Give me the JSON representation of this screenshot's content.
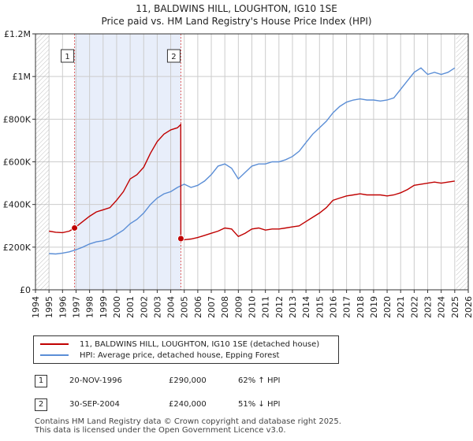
{
  "title_line1": "11, BALDWINS HILL, LOUGHTON, IG10 1SE",
  "title_line2": "Price paid vs. HM Land Registry's House Price Index (HPI)",
  "colors": {
    "property": "#c00000",
    "hpi": "#5b8ed6",
    "shade": "#e8eefa",
    "grid": "#cccccc",
    "vline": "#e06060"
  },
  "legend": {
    "property_label": "11, BALDWINS HILL, LOUGHTON, IG10 1SE (detached house)",
    "hpi_label": "HPI: Average price, detached house, Epping Forest"
  },
  "transactions": [
    {
      "num": "1",
      "date": "20-NOV-1996",
      "price": "£290,000",
      "hpi": "62% ↑ HPI"
    },
    {
      "num": "2",
      "date": "30-SEP-2004",
      "price": "£240,000",
      "hpi": "51% ↓ HPI"
    }
  ],
  "footer_line1": "Contains HM Land Registry data © Crown copyright and database right 2025.",
  "footer_line2": "This data is licensed under the Open Government Licence v3.0.",
  "chart_data": {
    "type": "line",
    "xlabel": "",
    "ylabel": "",
    "xlim": [
      1994,
      2026
    ],
    "ylim": [
      0,
      1200000
    ],
    "x_ticks": [
      "1994",
      "1995",
      "1996",
      "1997",
      "1998",
      "1999",
      "2000",
      "2001",
      "2002",
      "2003",
      "2004",
      "2005",
      "2006",
      "2007",
      "2008",
      "2009",
      "2010",
      "2011",
      "2012",
      "2013",
      "2014",
      "2015",
      "2016",
      "2017",
      "2018",
      "2019",
      "2020",
      "2021",
      "2022",
      "2023",
      "2024",
      "2025",
      "2026"
    ],
    "y_ticks": [
      {
        "value": 0,
        "label": "£0"
      },
      {
        "value": 200000,
        "label": "£200K"
      },
      {
        "value": 400000,
        "label": "£400K"
      },
      {
        "value": 600000,
        "label": "£600K"
      },
      {
        "value": 800000,
        "label": "£800K"
      },
      {
        "value": 1000000,
        "label": "£1M"
      },
      {
        "value": 1200000,
        "label": "£1.2M"
      }
    ],
    "grid": true,
    "shaded_range": [
      1996.89,
      2004.75
    ],
    "data_start": 1995.0,
    "data_end": 2025.1,
    "markers": [
      {
        "label": "1",
        "x": 1996.89,
        "y": 290000
      },
      {
        "label": "2",
        "x": 2004.75,
        "y": 240000
      }
    ],
    "series": [
      {
        "name": "11, BALDWINS HILL, LOUGHTON, IG10 1SE (detached house)",
        "x": [
          1995.0,
          1995.5,
          1996.0,
          1996.5,
          1996.89,
          1997.5,
          1998.0,
          1998.5,
          1999.0,
          1999.5,
          2000.0,
          2000.5,
          2001.0,
          2001.5,
          2002.0,
          2002.5,
          2003.0,
          2003.5,
          2004.0,
          2004.5,
          2004.74,
          2004.75,
          2005.0,
          2005.5,
          2006.0,
          2006.5,
          2007.0,
          2007.5,
          2008.0,
          2008.5,
          2009.0,
          2009.5,
          2010.0,
          2010.5,
          2011.0,
          2011.5,
          2012.0,
          2012.5,
          2013.0,
          2013.5,
          2014.0,
          2014.5,
          2015.0,
          2015.5,
          2016.0,
          2016.5,
          2017.0,
          2017.5,
          2018.0,
          2018.5,
          2019.0,
          2019.5,
          2020.0,
          2020.5,
          2021.0,
          2021.5,
          2022.0,
          2022.5,
          2023.0,
          2023.5,
          2024.0,
          2024.5,
          2025.0
        ],
        "y": [
          275000,
          270000,
          268000,
          275000,
          290000,
          320000,
          345000,
          365000,
          375000,
          385000,
          420000,
          460000,
          520000,
          540000,
          575000,
          640000,
          695000,
          730000,
          750000,
          760000,
          775000,
          240000,
          235000,
          238000,
          245000,
          255000,
          265000,
          275000,
          290000,
          285000,
          250000,
          265000,
          285000,
          290000,
          280000,
          285000,
          285000,
          290000,
          295000,
          300000,
          320000,
          340000,
          360000,
          385000,
          420000,
          430000,
          440000,
          445000,
          450000,
          445000,
          445000,
          445000,
          440000,
          445000,
          455000,
          470000,
          490000,
          495000,
          500000,
          505000,
          500000,
          505000,
          510000
        ]
      },
      {
        "name": "HPI: Average price, detached house, Epping Forest",
        "x": [
          1995.0,
          1995.5,
          1996.0,
          1996.5,
          1997.0,
          1997.5,
          1998.0,
          1998.5,
          1999.0,
          1999.5,
          2000.0,
          2000.5,
          2001.0,
          2001.5,
          2002.0,
          2002.5,
          2003.0,
          2003.5,
          2004.0,
          2004.5,
          2005.0,
          2005.5,
          2006.0,
          2006.5,
          2007.0,
          2007.5,
          2008.0,
          2008.5,
          2009.0,
          2009.5,
          2010.0,
          2010.5,
          2011.0,
          2011.5,
          2012.0,
          2012.5,
          2013.0,
          2013.5,
          2014.0,
          2014.5,
          2015.0,
          2015.5,
          2016.0,
          2016.5,
          2017.0,
          2017.5,
          2018.0,
          2018.5,
          2019.0,
          2019.5,
          2020.0,
          2020.5,
          2021.0,
          2021.5,
          2022.0,
          2022.5,
          2023.0,
          2023.5,
          2024.0,
          2024.5,
          2025.0
        ],
        "y": [
          170000,
          168000,
          172000,
          178000,
          188000,
          200000,
          215000,
          225000,
          230000,
          240000,
          260000,
          280000,
          310000,
          330000,
          360000,
          400000,
          430000,
          450000,
          460000,
          480000,
          495000,
          480000,
          490000,
          510000,
          540000,
          580000,
          590000,
          570000,
          520000,
          550000,
          580000,
          590000,
          590000,
          600000,
          600000,
          610000,
          625000,
          650000,
          690000,
          730000,
          760000,
          790000,
          830000,
          860000,
          880000,
          890000,
          895000,
          890000,
          890000,
          885000,
          890000,
          900000,
          940000,
          980000,
          1020000,
          1040000,
          1010000,
          1020000,
          1010000,
          1020000,
          1040000
        ]
      }
    ]
  }
}
